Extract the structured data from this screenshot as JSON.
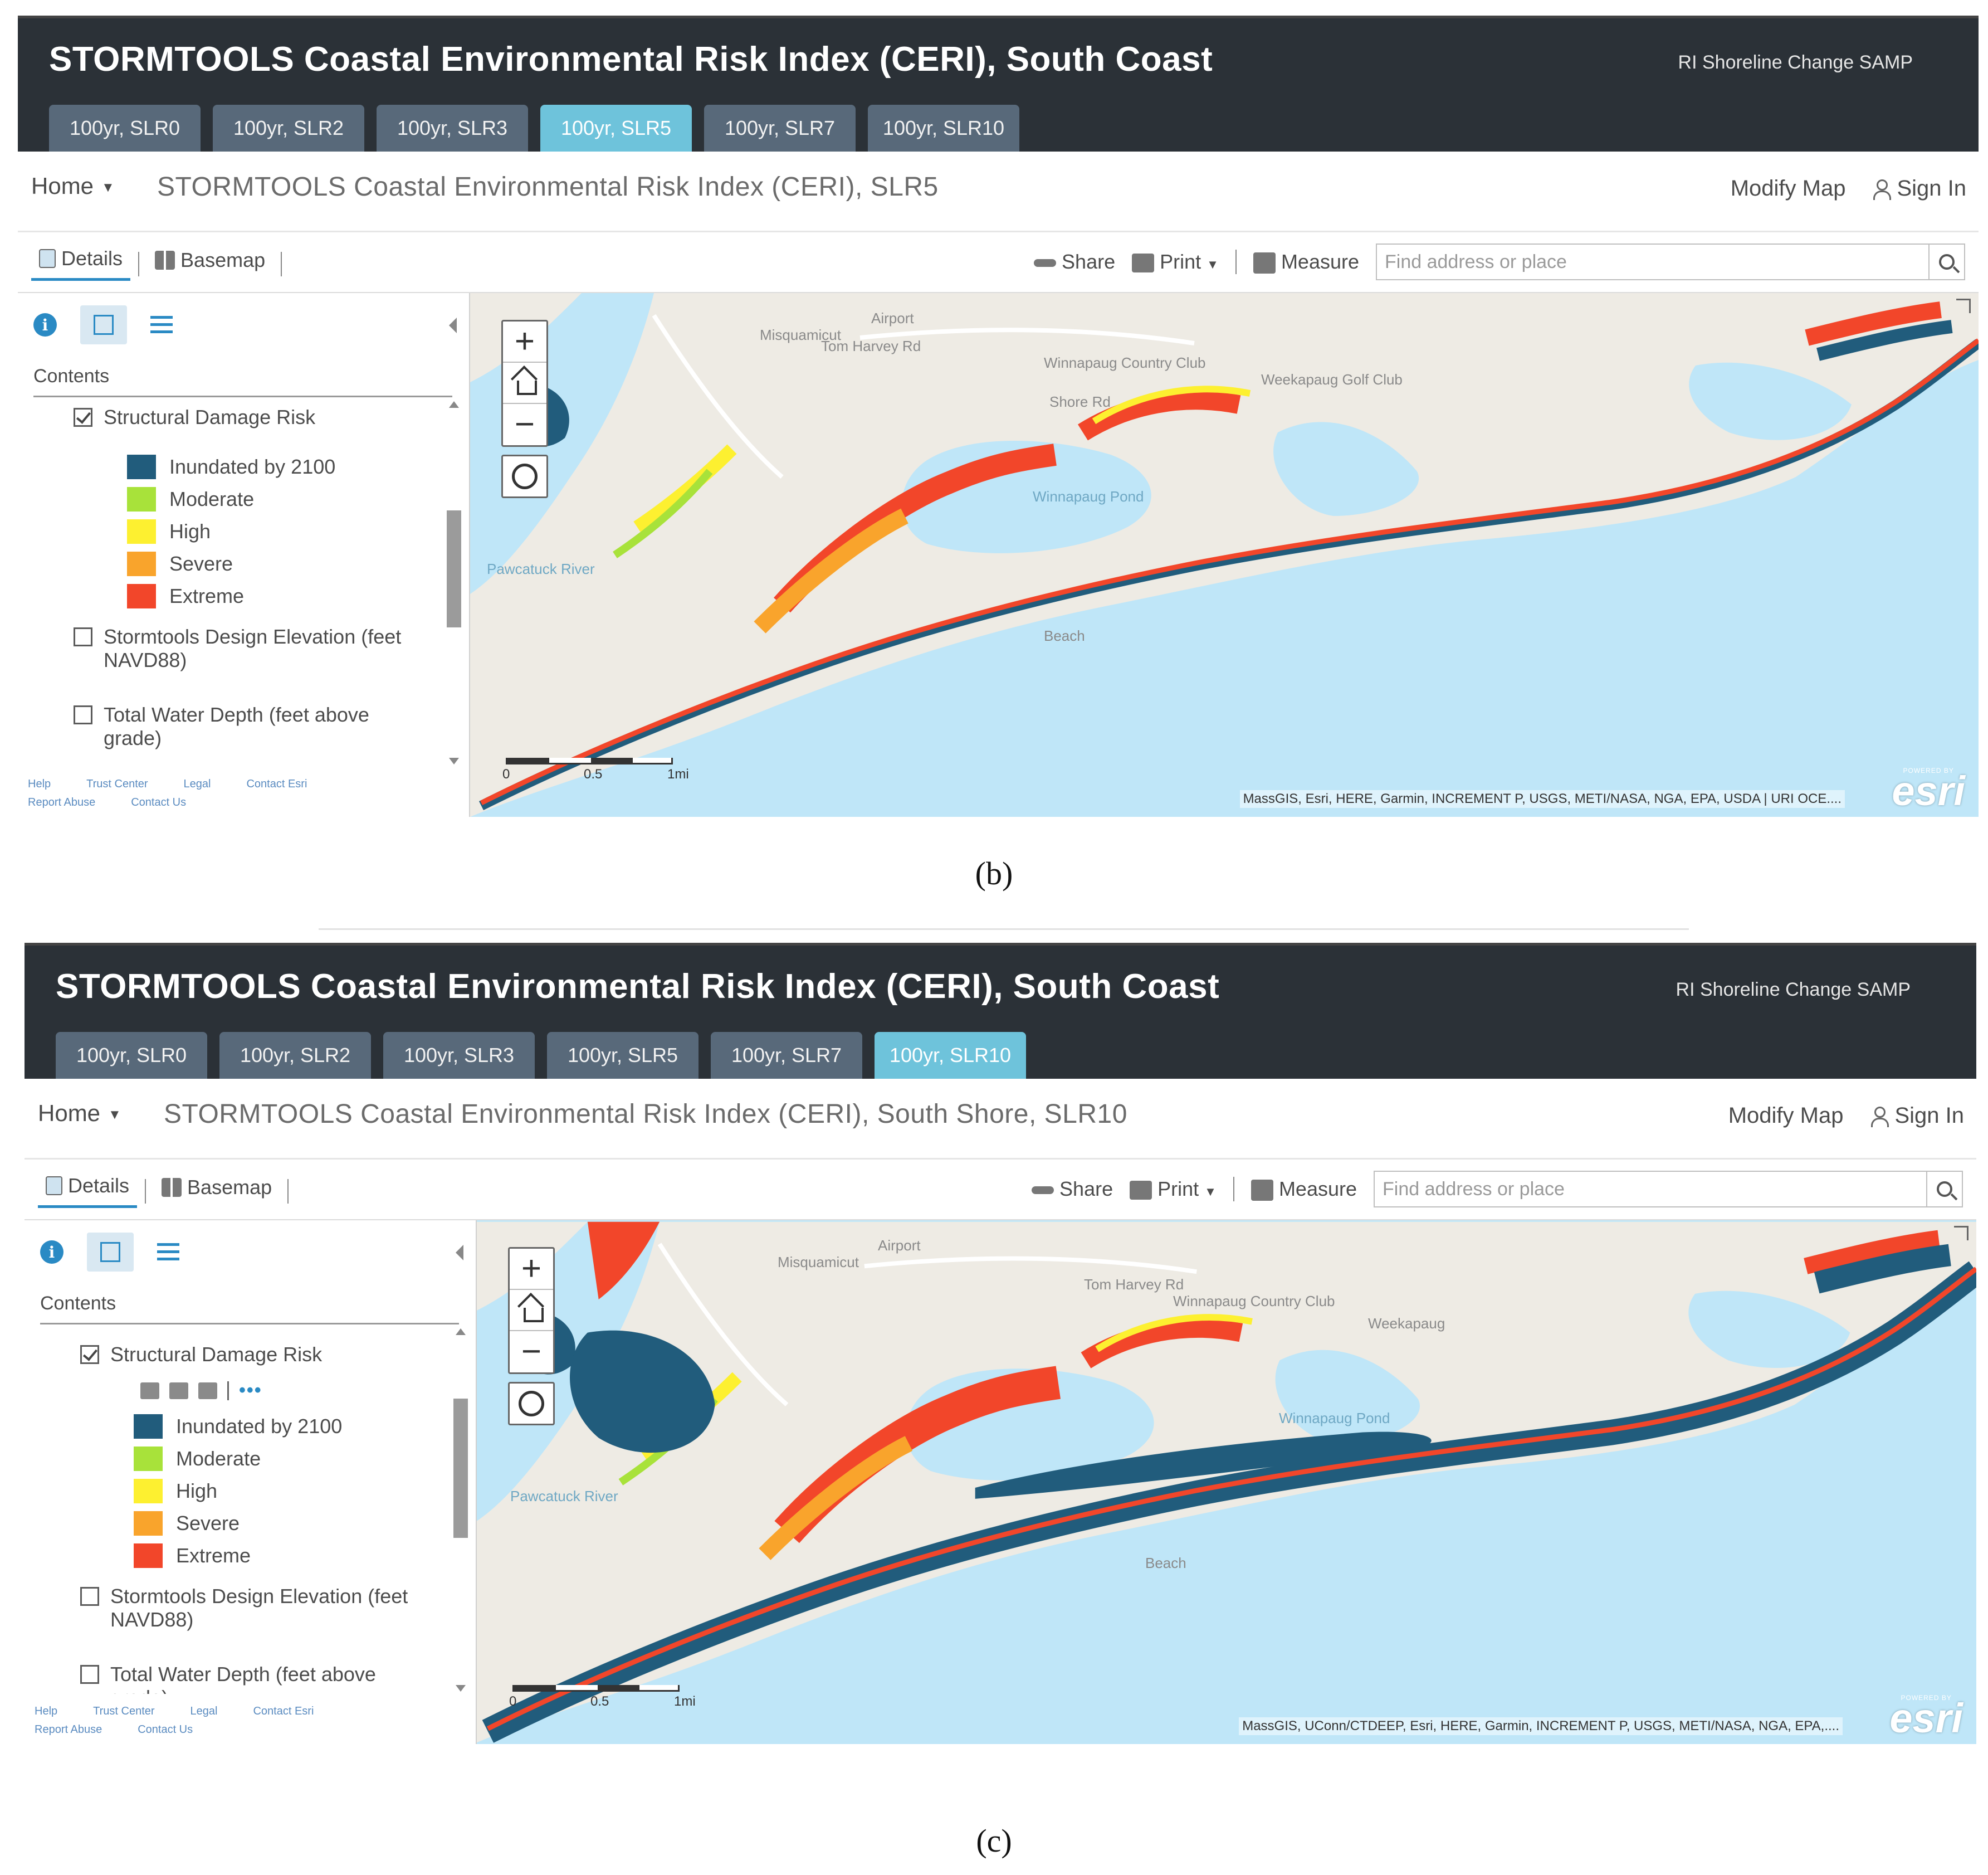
{
  "captions": [
    "(b)",
    "(c)"
  ],
  "panels": [
    {
      "app_title": "STORMTOOLS Coastal Environmental Risk Index (CERI), South Coast",
      "app_subtitle": "RI Shoreline Change SAMP",
      "tabs": [
        "100yr, SLR0",
        "100yr, SLR2",
        "100yr, SLR3",
        "100yr, SLR5",
        "100yr, SLR7",
        "100yr, SLR10"
      ],
      "active_tab": "100yr, SLR5",
      "home_label": "Home",
      "map_title": "STORMTOOLS Coastal Environmental Risk Index (CERI), SLR5",
      "modify_map": "Modify Map",
      "sign_in": "Sign In",
      "toolbar": {
        "details": "Details",
        "basemap": "Basemap",
        "share": "Share",
        "print": "Print",
        "measure": "Measure",
        "search_placeholder": "Find address or place"
      },
      "contents_label": "Contents",
      "layers": [
        {
          "name": "Structural Damage Risk",
          "checked": true
        },
        {
          "name": "Stormtools Design Elevation (feet NAVD88)",
          "checked": false
        },
        {
          "name": "Total Water Depth (feet above grade)",
          "checked": false
        }
      ],
      "legend": [
        {
          "label": "Inundated by 2100",
          "color": "#215c7c"
        },
        {
          "label": "Moderate",
          "color": "#a8e23a"
        },
        {
          "label": "High",
          "color": "#fdf030"
        },
        {
          "label": "Severe",
          "color": "#f9a42c"
        },
        {
          "label": "Extreme",
          "color": "#f2462a"
        }
      ],
      "footer_links": [
        "Help",
        "Trust Center",
        "Legal",
        "Contact Esri",
        "Report Abuse",
        "Contact Us"
      ],
      "map_labels": [
        "Tom Harvey Rd",
        "Winnapaug Country Club",
        "Shore Rd",
        "Misquamicut",
        "Winnapaug Pond",
        "Pawcatuck River",
        "Airport",
        "Weekapaug Golf Club",
        "Beach"
      ],
      "scale": {
        "labels": [
          "0",
          "0.5",
          "1mi"
        ]
      },
      "attribution": "MassGIS, Esri, HERE, Garmin, INCREMENT P, USGS, METI/NASA, NGA, EPA, USDA | URI OCE....",
      "esri_powered": "POWERED BY",
      "esri": "esri"
    },
    {
      "app_title": "STORMTOOLS Coastal Environmental Risk Index (CERI), South Coast",
      "app_subtitle": "RI Shoreline Change SAMP",
      "tabs": [
        "100yr, SLR0",
        "100yr, SLR2",
        "100yr, SLR3",
        "100yr, SLR5",
        "100yr, SLR7",
        "100yr, SLR10"
      ],
      "active_tab": "100yr, SLR10",
      "home_label": "Home",
      "map_title": "STORMTOOLS Coastal Environmental Risk Index (CERI), South Shore, SLR10",
      "modify_map": "Modify Map",
      "sign_in": "Sign In",
      "toolbar": {
        "details": "Details",
        "basemap": "Basemap",
        "share": "Share",
        "print": "Print",
        "measure": "Measure",
        "search_placeholder": "Find address or place"
      },
      "contents_label": "Contents",
      "layers": [
        {
          "name": "Structural Damage Risk",
          "checked": true
        },
        {
          "name": "Stormtools Design Elevation (feet NAVD88)",
          "checked": false
        },
        {
          "name": "Total Water Depth (feet above grade)",
          "checked": false
        }
      ],
      "legend": [
        {
          "label": "Inundated by 2100",
          "color": "#215c7c"
        },
        {
          "label": "Moderate",
          "color": "#a8e23a"
        },
        {
          "label": "High",
          "color": "#fdf030"
        },
        {
          "label": "Severe",
          "color": "#f9a42c"
        },
        {
          "label": "Extreme",
          "color": "#f2462a"
        }
      ],
      "layer_tools": "•••",
      "footer_links": [
        "Help",
        "Trust Center",
        "Legal",
        "Contact Esri",
        "Report Abuse",
        "Contact Us"
      ],
      "map_labels": [
        "Tom Harvey Rd",
        "Winnapaug Country Club",
        "Misquamicut",
        "Winnapaug Pond",
        "Pawcatuck River",
        "Airport",
        "Weekapaug",
        "Beach"
      ],
      "scale": {
        "labels": [
          "0",
          "0.5",
          "1mi"
        ]
      },
      "attribution": "MassGIS, UConn/CTDEEP, Esri, HERE, Garmin, INCREMENT P, USGS, METI/NASA, NGA, EPA,....",
      "esri_powered": "POWERED BY",
      "esri": "esri"
    }
  ]
}
